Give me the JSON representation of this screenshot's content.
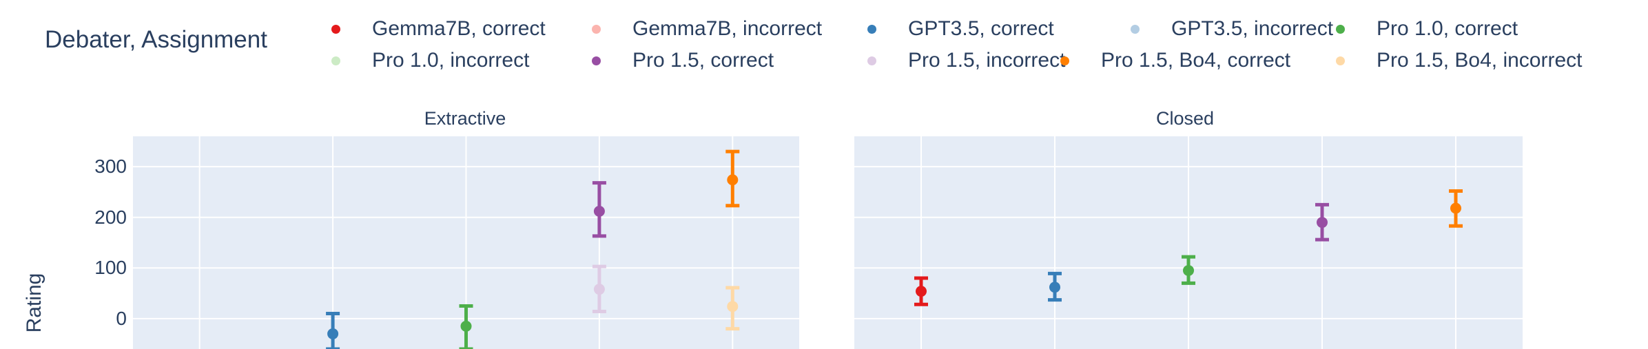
{
  "legend": {
    "title": "Debater, Assignment",
    "items": [
      {
        "label": "Gemma7B, correct",
        "color": "#e41a1c"
      },
      {
        "label": "Gemma7B, incorrect",
        "color": "#fbb4ae"
      },
      {
        "label": "GPT3.5, correct",
        "color": "#377eb8"
      },
      {
        "label": "GPT3.5, incorrect",
        "color": "#b3cde3"
      },
      {
        "label": "Pro 1.0, correct",
        "color": "#4daf4a"
      },
      {
        "label": "Pro 1.0, incorrect",
        "color": "#ccebc5"
      },
      {
        "label": "Pro 1.5, correct",
        "color": "#984ea3"
      },
      {
        "label": "Pro 1.5, incorrect",
        "color": "#decbe4"
      },
      {
        "label": "Pro 1.5, Bo4, correct",
        "color": "#ff7f00"
      },
      {
        "label": "Pro 1.5, Bo4, incorrect",
        "color": "#fed9a6"
      }
    ]
  },
  "chart_data": {
    "type": "scatter",
    "ylabel": "Rating",
    "yticks": [
      0,
      100,
      200,
      300
    ],
    "ylim": [
      -60,
      360
    ],
    "grid": true,
    "legend_placement": "top",
    "panels": [
      {
        "title": "Extractive",
        "points": [
          {
            "series": "GPT3.5, correct",
            "y": -30,
            "err_low": -60,
            "err_high": 10,
            "color": "#377eb8"
          },
          {
            "series": "Pro 1.0, correct",
            "y": -15,
            "err_low": -60,
            "err_high": 25,
            "color": "#4daf4a"
          },
          {
            "series": "Pro 1.5, correct",
            "y": 212,
            "err_low": 163,
            "err_high": 268,
            "color": "#984ea3"
          },
          {
            "series": "Pro 1.5, incorrect",
            "y": 58,
            "err_low": 14,
            "err_high": 103,
            "color": "#decbe4"
          },
          {
            "series": "Pro 1.5, Bo4, correct",
            "y": 274,
            "err_low": 223,
            "err_high": 330,
            "color": "#ff7f00"
          },
          {
            "series": "Pro 1.5, Bo4, incorrect",
            "y": 24,
            "err_low": -20,
            "err_high": 61,
            "color": "#fed9a6"
          }
        ]
      },
      {
        "title": "Closed",
        "points": [
          {
            "series": "Gemma7B, correct",
            "y": 54,
            "err_low": 28,
            "err_high": 80,
            "color": "#e41a1c"
          },
          {
            "series": "GPT3.5, correct",
            "y": 62,
            "err_low": 37,
            "err_high": 89,
            "color": "#377eb8"
          },
          {
            "series": "Pro 1.0, correct",
            "y": 95,
            "err_low": 70,
            "err_high": 122,
            "color": "#4daf4a"
          },
          {
            "series": "Pro 1.5, correct",
            "y": 190,
            "err_low": 156,
            "err_high": 225,
            "color": "#984ea3"
          },
          {
            "series": "Pro 1.5, Bo4, correct",
            "y": 218,
            "err_low": 183,
            "err_high": 252,
            "color": "#ff7f00"
          }
        ]
      }
    ]
  }
}
